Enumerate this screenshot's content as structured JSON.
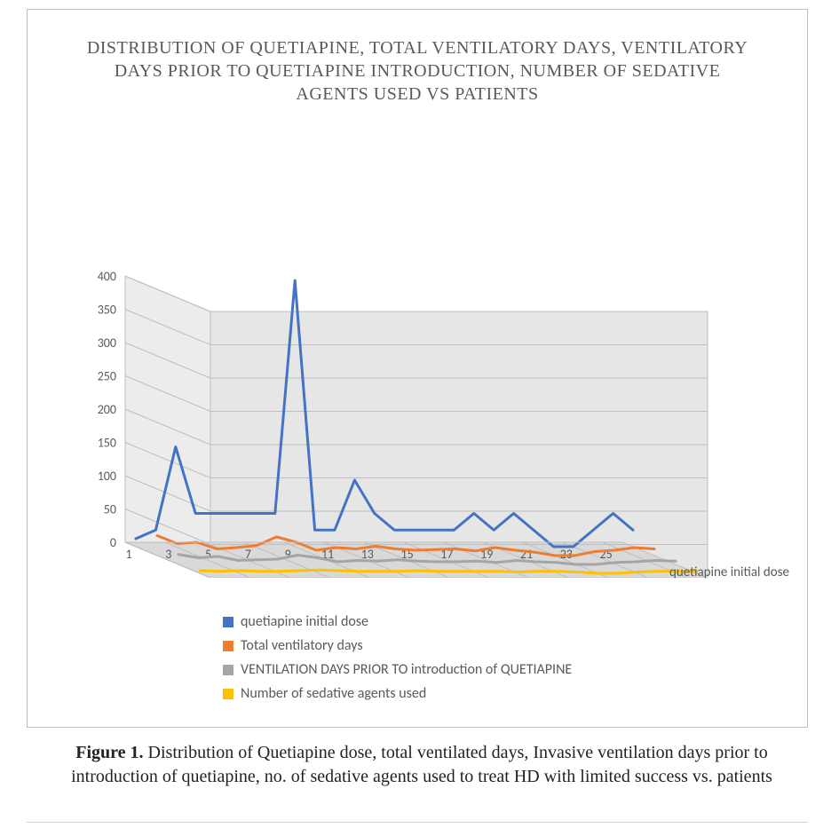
{
  "chart": {
    "type": "line-3d",
    "title": "DISTRIBUTION  OF QUETIAPINE, TOTAL VENTILATORY DAYS, VENTILATORY DAYS PRIOR TO QUETIAPINE INTRODUCTION, NUMBER OF SEDATIVE AGENTS USED VS PATIENTS",
    "title_fontsize": 20,
    "title_color": "#595959",
    "background_color": "#ffffff",
    "border_color": "#bfbfbf",
    "floor_color": "#d9d9d9",
    "back_wall_color": "#e6e6e6",
    "side_wall_color": "#ececec",
    "grid_color": "#bfbfbf",
    "axis_label_fontsize": 14,
    "x_categories": [
      1,
      2,
      3,
      4,
      5,
      6,
      7,
      8,
      9,
      10,
      11,
      12,
      13,
      14,
      15,
      16,
      17,
      18,
      19,
      20,
      21,
      22,
      23,
      24,
      25,
      26
    ],
    "x_tick_labels": [
      "1",
      "3",
      "5",
      "7",
      "9",
      "11",
      "13",
      "15",
      "17",
      "19",
      "21",
      "23",
      "25"
    ],
    "x_tick_every": 2,
    "ylim": [
      0,
      400
    ],
    "ytick_step": 50,
    "y_ticks": [
      0,
      50,
      100,
      150,
      200,
      250,
      300,
      350,
      400
    ],
    "depth_axis_label": "quetiapine initial dose",
    "series": [
      {
        "name": "quetiapine initial dose",
        "color": "#4472c4",
        "line_width": 3,
        "depth_offset": 0,
        "values": [
          12,
          25,
          150,
          50,
          50,
          50,
          50,
          50,
          400,
          25,
          25,
          100,
          50,
          25,
          25,
          25,
          25,
          50,
          25,
          50,
          25,
          0,
          0,
          25,
          50,
          25
        ]
      },
      {
        "name": "Total ventilatory days",
        "color": "#ed7d31",
        "line_width": 3,
        "depth_offset": 1,
        "values": [
          30,
          18,
          20,
          10,
          12,
          15,
          28,
          20,
          8,
          12,
          10,
          14,
          10,
          8,
          9,
          10,
          7,
          12,
          8,
          5,
          0,
          0,
          6,
          8,
          12,
          10
        ]
      },
      {
        "name": "VENTILATION DAYS PRIOR TO introduction of QUETIAPINE",
        "color": "#a5a5a5",
        "line_width": 3,
        "depth_offset": 2,
        "values": [
          15,
          10,
          12,
          6,
          7,
          8,
          14,
          10,
          4,
          6,
          5,
          7,
          5,
          4,
          4,
          5,
          3,
          6,
          4,
          3,
          0,
          0,
          3,
          4,
          6,
          5
        ]
      },
      {
        "name": "Number of sedative agents used",
        "color": "#ffc000",
        "line_width": 3,
        "depth_offset": 3,
        "values": [
          4,
          3,
          4,
          3,
          3,
          4,
          5,
          4,
          3,
          3,
          3,
          4,
          3,
          3,
          3,
          3,
          2,
          3,
          3,
          2,
          0,
          0,
          2,
          3,
          3,
          3
        ]
      }
    ],
    "legend_position": "bottom",
    "legend_fontsize": 16,
    "legend_color": "#595959"
  },
  "caption": {
    "figure_label": "Figure 1.",
    "text": "Distribution of Quetiapine dose, total ventilated days, Invasive ventilation days prior to introduction of quetiapine, no. of sedative agents used to treat HD with limited success vs. patients",
    "fontsize": 20,
    "color": "#222222"
  }
}
